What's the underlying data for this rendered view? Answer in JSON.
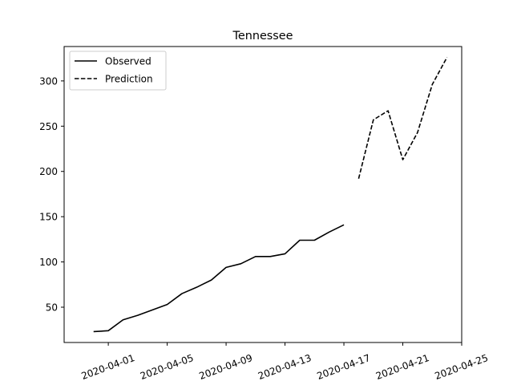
{
  "chart_data": {
    "type": "line",
    "title": "Tennessee",
    "xlabel": "",
    "ylabel": "",
    "x_axis_type": "date",
    "xlim": [
      "2020-03-29",
      "2020-04-25"
    ],
    "ylim": [
      11,
      338
    ],
    "x_ticks": [
      "2020-04-01",
      "2020-04-05",
      "2020-04-09",
      "2020-04-13",
      "2020-04-17",
      "2020-04-21",
      "2020-04-25"
    ],
    "y_ticks": [
      50,
      100,
      150,
      200,
      250,
      300
    ],
    "x_tick_rotation": 20,
    "grid": false,
    "legend_position": "top-left",
    "series": [
      {
        "name": "Observed",
        "style": "solid",
        "color": "#000000",
        "points": [
          [
            "2020-03-31",
            23
          ],
          [
            "2020-04-01",
            24
          ],
          [
            "2020-04-02",
            36
          ],
          [
            "2020-04-03",
            41
          ],
          [
            "2020-04-04",
            47
          ],
          [
            "2020-04-05",
            53
          ],
          [
            "2020-04-06",
            65
          ],
          [
            "2020-04-07",
            72
          ],
          [
            "2020-04-08",
            80
          ],
          [
            "2020-04-09",
            94
          ],
          [
            "2020-04-10",
            98
          ],
          [
            "2020-04-11",
            106
          ],
          [
            "2020-04-12",
            106
          ],
          [
            "2020-04-13",
            109
          ],
          [
            "2020-04-14",
            124
          ],
          [
            "2020-04-15",
            124
          ],
          [
            "2020-04-16",
            133
          ],
          [
            "2020-04-17",
            141
          ]
        ]
      },
      {
        "name": "Prediction",
        "style": "dashed",
        "color": "#000000",
        "points": [
          [
            "2020-04-18",
            192
          ],
          [
            "2020-04-19",
            257
          ],
          [
            "2020-04-20",
            267
          ],
          [
            "2020-04-21",
            213
          ],
          [
            "2020-04-22",
            243
          ],
          [
            "2020-04-23",
            296
          ],
          [
            "2020-04-24",
            326
          ]
        ]
      }
    ]
  }
}
